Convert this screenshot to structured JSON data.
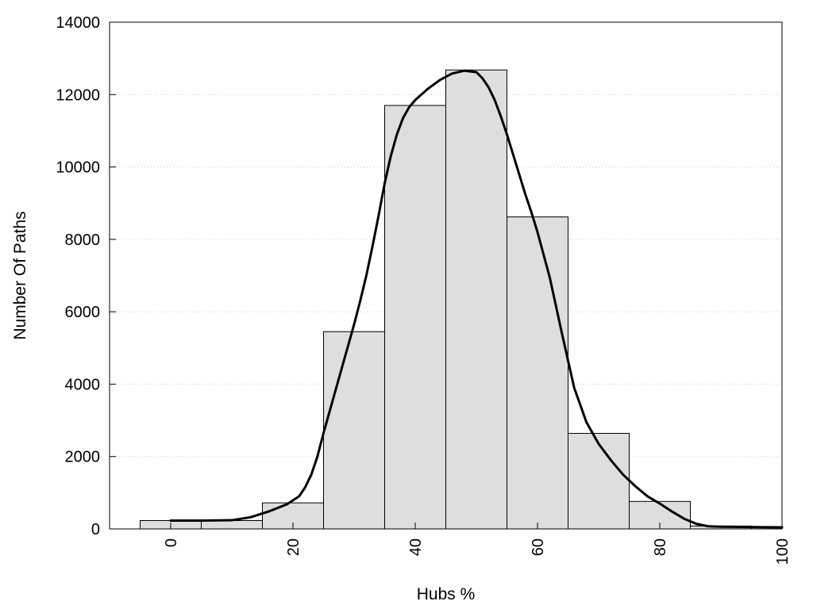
{
  "chart_data": {
    "type": "bar",
    "title": "",
    "xlabel": "Hubs %",
    "ylabel": "Number Of Paths",
    "xlim": [
      -10,
      100
    ],
    "ylim": [
      0,
      14000
    ],
    "x_ticks": [
      0,
      20,
      40,
      60,
      80,
      100
    ],
    "y_ticks": [
      0,
      2000,
      4000,
      6000,
      8000,
      10000,
      12000,
      14000
    ],
    "grid": "horizontal-dotted",
    "bin_width": 10,
    "categories": [
      0,
      10,
      20,
      30,
      40,
      50,
      60,
      70,
      80,
      90
    ],
    "values": [
      230,
      230,
      720,
      5450,
      11700,
      12680,
      8620,
      2640,
      760,
      80
    ],
    "series": [
      {
        "type": "line",
        "x": [
          0,
          5,
          10,
          13,
          16,
          19,
          21,
          22,
          23,
          24,
          25,
          26,
          27,
          28,
          29,
          30,
          31,
          32,
          33,
          34,
          35,
          36,
          37,
          38,
          39,
          40,
          42,
          44,
          46,
          48,
          50,
          51,
          52,
          53,
          54,
          55,
          56,
          57,
          58,
          59,
          60,
          62,
          64,
          66,
          68,
          70,
          72,
          74,
          76,
          78,
          80,
          82,
          84,
          86,
          88,
          90,
          93,
          96,
          100
        ],
        "y": [
          230,
          230,
          240,
          320,
          480,
          680,
          900,
          1150,
          1500,
          2000,
          2650,
          3250,
          3850,
          4450,
          5050,
          5650,
          6300,
          7000,
          7800,
          8650,
          9550,
          10300,
          10900,
          11350,
          11650,
          11850,
          12150,
          12400,
          12580,
          12660,
          12620,
          12450,
          12200,
          11850,
          11400,
          10900,
          10350,
          9800,
          9250,
          8750,
          8200,
          6950,
          5400,
          3900,
          2950,
          2350,
          1900,
          1500,
          1180,
          900,
          700,
          480,
          280,
          140,
          70,
          60,
          55,
          50,
          45
        ]
      }
    ]
  }
}
